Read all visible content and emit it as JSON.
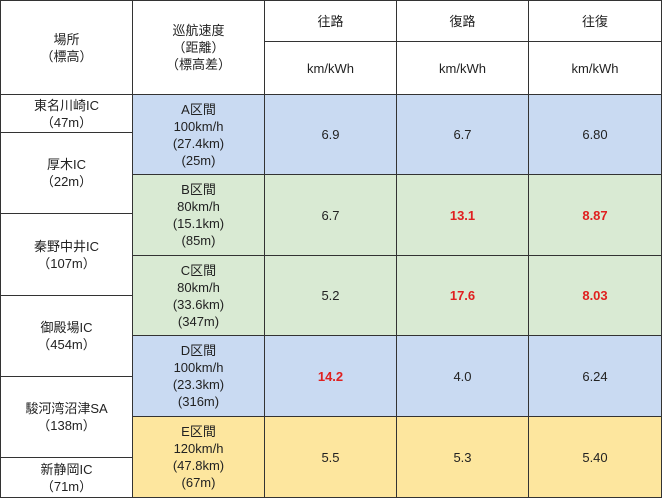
{
  "header": {
    "location": [
      "場所",
      "（標高）"
    ],
    "cruise": [
      "巡航速度",
      "（距離）",
      "（標高差）"
    ],
    "columns": [
      "往路",
      "復路",
      "往復"
    ],
    "units": [
      "km/kWh",
      "km/kWh",
      "km/kWh"
    ]
  },
  "locations": [
    {
      "name": "東名川崎IC",
      "elevation": "（47m）"
    },
    {
      "name": "厚木IC",
      "elevation": "（22m）"
    },
    {
      "name": "秦野中井IC",
      "elevation": "（107m）"
    },
    {
      "name": "御殿場IC",
      "elevation": "（454m）"
    },
    {
      "name": "駿河湾沼津SA",
      "elevation": "（138m）"
    },
    {
      "name": "新静岡IC",
      "elevation": "（71m）"
    }
  ],
  "segments": [
    {
      "lines": [
        "A区間",
        "100km/h",
        "(27.4km)",
        "(25m)"
      ],
      "values": [
        "6.9",
        "6.7",
        "6.80"
      ],
      "highlighted": [
        false,
        false,
        false
      ],
      "color": "#c9daf2"
    },
    {
      "lines": [
        "B区間",
        "80km/h",
        "(15.1km)",
        "(85m)"
      ],
      "values": [
        "6.7",
        "13.1",
        "8.87"
      ],
      "highlighted": [
        false,
        true,
        true
      ],
      "color": "#d9ead3"
    },
    {
      "lines": [
        "C区間",
        "80km/h",
        "(33.6km)",
        "(347m)"
      ],
      "values": [
        "5.2",
        "17.6",
        "8.03"
      ],
      "highlighted": [
        false,
        true,
        true
      ],
      "color": "#d9ead3"
    },
    {
      "lines": [
        "D区間",
        "100km/h",
        "(23.3km)",
        "(316m)"
      ],
      "values": [
        "14.2",
        "4.0",
        "6.24"
      ],
      "highlighted": [
        true,
        false,
        false
      ],
      "color": "#c9daf2"
    },
    {
      "lines": [
        "E区間",
        "120km/h",
        "(47.8km)",
        "(67m)"
      ],
      "values": [
        "5.5",
        "5.3",
        "5.40"
      ],
      "highlighted": [
        false,
        false,
        false
      ],
      "color": "#fde69e"
    }
  ]
}
